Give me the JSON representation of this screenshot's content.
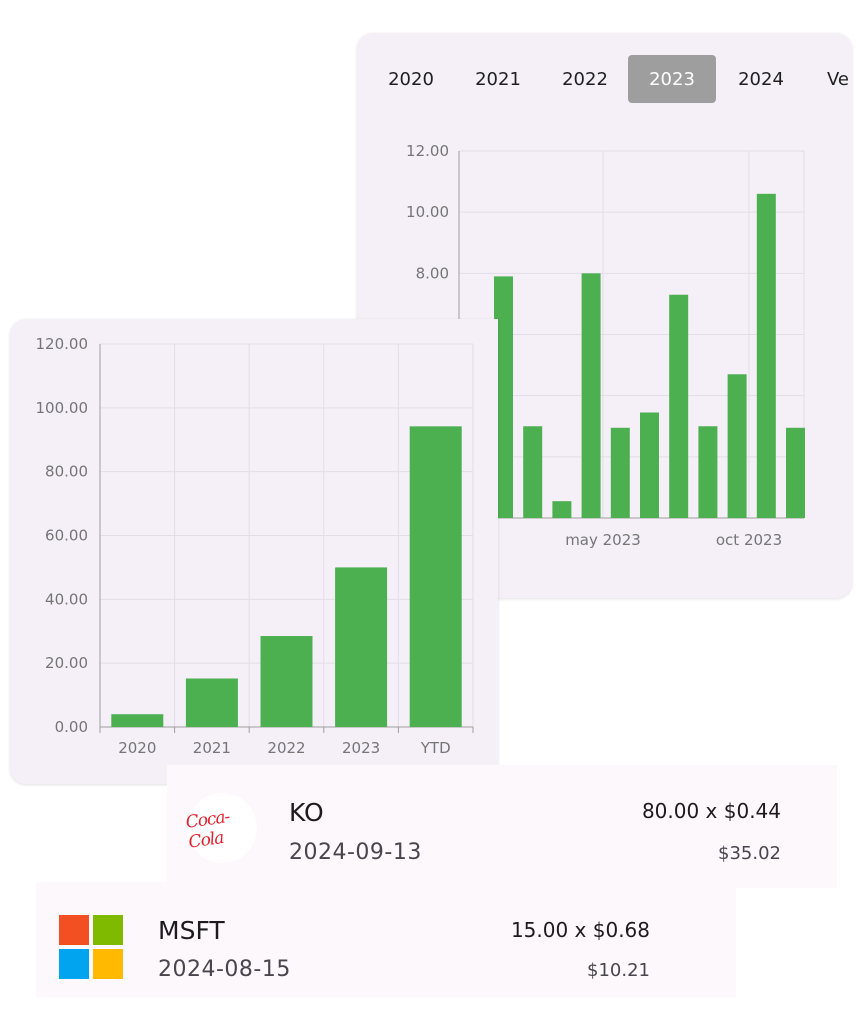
{
  "monthly": {
    "tabs": [
      "2020",
      "2021",
      "2022",
      "2023",
      "2024",
      "Ve"
    ],
    "selected_tab": "2023",
    "chart_data": {
      "type": "bar",
      "x_tick_labels": [
        "may 2023",
        "oct 2023"
      ],
      "y_tick_labels": [
        "8.00",
        "10.00",
        "12.00"
      ],
      "ylim": [
        0,
        12
      ],
      "values": [
        7.9,
        3.0,
        0.55,
        8.0,
        2.95,
        3.45,
        7.3,
        3.0,
        4.7,
        10.6,
        2.95
      ],
      "bar_color": "#4caf50"
    }
  },
  "yearly": {
    "chart_data": {
      "type": "bar",
      "categories": [
        "2020",
        "2021",
        "2022",
        "2023",
        "YTD"
      ],
      "values": [
        4.0,
        15.2,
        28.5,
        50.0,
        94.2
      ],
      "y_tick_labels": [
        "0.00",
        "20.00",
        "40.00",
        "60.00",
        "80.00",
        "100.00",
        "120.00"
      ],
      "ylim": [
        0,
        120
      ],
      "bar_color": "#4caf50"
    }
  },
  "transactions": [
    {
      "ticker": "KO",
      "date": "2024-09-13",
      "quantity_price": "80.00 x $0.44",
      "amount": "$35.02",
      "logo": "coca-cola-logo",
      "logo_text": "Coca-Cola"
    },
    {
      "ticker": "MSFT",
      "date": "2024-08-15",
      "quantity_price": "15.00 x $0.68",
      "amount": "$10.21",
      "logo": "microsoft-logo"
    }
  ],
  "colors": {
    "bar": "#4caf50",
    "card": "#f5f0f8",
    "tab_selected": "#9e9e9e"
  }
}
